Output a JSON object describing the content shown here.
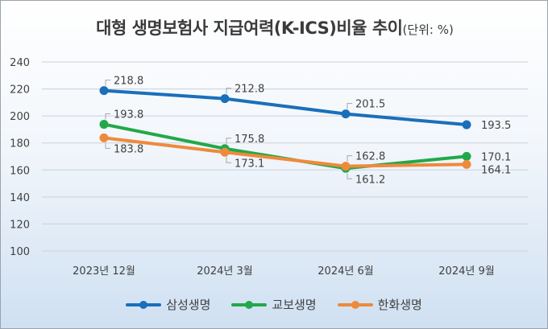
{
  "chart_data": {
    "type": "line",
    "title": "대형 생명보험사 지급여력(K-ICS)비율 추이",
    "unit_note": "(단위: %)",
    "categories": [
      "2023년 12월",
      "2024년 3월",
      "2024년 6월",
      "2024년 9월"
    ],
    "ylim": [
      100,
      240
    ],
    "yticks": [
      100,
      120,
      140,
      160,
      180,
      200,
      220,
      240
    ],
    "grid": true,
    "legend_position": "bottom",
    "series": [
      {
        "name": "삼성생명",
        "color": "#1a6fba",
        "values": [
          218.8,
          212.8,
          201.5,
          193.5
        ]
      },
      {
        "name": "교보생명",
        "color": "#22a84a",
        "values": [
          193.8,
          175.8,
          161.2,
          170.1
        ]
      },
      {
        "name": "한화생명",
        "color": "#ee8a3c",
        "values": [
          183.8,
          173.1,
          162.8,
          164.1
        ]
      }
    ]
  }
}
